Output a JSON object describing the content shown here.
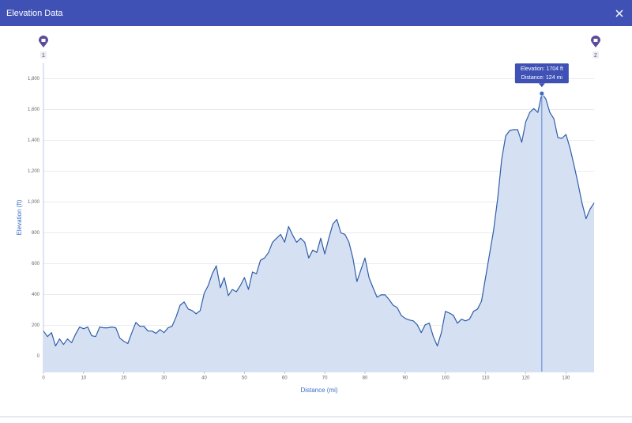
{
  "dialog": {
    "title": "Elevation Data"
  },
  "waypoints": [
    "1",
    "2"
  ],
  "chart_data": {
    "type": "area",
    "xlabel": "Distance (mi)",
    "ylabel": "Elevation (ft)",
    "tooltip": {
      "index": 124,
      "lines": [
        "Elevation: 1704 ft",
        "Distance: 124 mi"
      ]
    },
    "color": "#2f5ea8",
    "fill": "#d6e0f3",
    "grid": true,
    "xlim": [
      0,
      137
    ],
    "ylim": [
      -100,
      1900
    ],
    "xticks": [
      0,
      10,
      20,
      30,
      40,
      50,
      60,
      70,
      80,
      90,
      100,
      110,
      120,
      130
    ],
    "yticks": [
      0,
      200,
      400,
      600,
      800,
      {
        "value": 1000,
        "label": "1,000"
      },
      {
        "value": 1200,
        "label": "1,200"
      },
      {
        "value": 1400,
        "label": "1,400"
      },
      {
        "value": 1600,
        "label": "1,600"
      },
      {
        "value": 1800,
        "label": "1,800"
      }
    ],
    "x": [
      0,
      1,
      2,
      3,
      4,
      5,
      6,
      7,
      8,
      9,
      10,
      11,
      12,
      13,
      14,
      15,
      16,
      17,
      18,
      19,
      20,
      21,
      22,
      23,
      24,
      25,
      26,
      27,
      28,
      29,
      30,
      31,
      32,
      33,
      34,
      35,
      36,
      37,
      38,
      39,
      40,
      41,
      42,
      43,
      44,
      45,
      46,
      47,
      48,
      49,
      50,
      51,
      52,
      53,
      54,
      55,
      56,
      57,
      58,
      59,
      60,
      61,
      62,
      63,
      64,
      65,
      66,
      67,
      68,
      69,
      70,
      71,
      72,
      73,
      74,
      75,
      76,
      77,
      78,
      79,
      80,
      81,
      82,
      83,
      84,
      85,
      86,
      87,
      88,
      89,
      90,
      91,
      92,
      93,
      94,
      95,
      96,
      97,
      98,
      99,
      100,
      101,
      102,
      103,
      104,
      105,
      106,
      107,
      108,
      109,
      110,
      111,
      112,
      113,
      114,
      115,
      116,
      117,
      118,
      119,
      120,
      121,
      122,
      123,
      124,
      125,
      126,
      127,
      128,
      129,
      130,
      131,
      132,
      133,
      134,
      135,
      136,
      137
    ],
    "values": [
      163,
      127,
      153,
      66,
      112,
      76,
      112,
      87,
      143,
      189,
      178,
      189,
      133,
      127,
      189,
      184,
      184,
      189,
      184,
      117,
      97,
      82,
      153,
      219,
      194,
      194,
      163,
      163,
      148,
      173,
      153,
      184,
      194,
      255,
      331,
      352,
      306,
      296,
      275,
      296,
      408,
      459,
      535,
      586,
      444,
      510,
      393,
      433,
      418,
      459,
      510,
      433,
      546,
      535,
      622,
      637,
      673,
      739,
      765,
      790,
      739,
      841,
      785,
      739,
      765,
      739,
      637,
      688,
      673,
      765,
      663,
      765,
      857,
      887,
      800,
      790,
      739,
      637,
      484,
      561,
      637,
      510,
      444,
      382,
      398,
      398,
      367,
      331,
      316,
      265,
      245,
      235,
      229,
      204,
      153,
      204,
      214,
      127,
      66,
      153,
      291,
      280,
      265,
      214,
      240,
      229,
      240,
      291,
      306,
      357,
      510,
      663,
      816,
      1020,
      1275,
      1428,
      1464,
      1469,
      1469,
      1387,
      1520,
      1581,
      1606,
      1581,
      1704,
      1668,
      1581,
      1540,
      1418,
      1413,
      1438,
      1351,
      1239,
      1122,
      994,
      892,
      954,
      994
    ]
  }
}
